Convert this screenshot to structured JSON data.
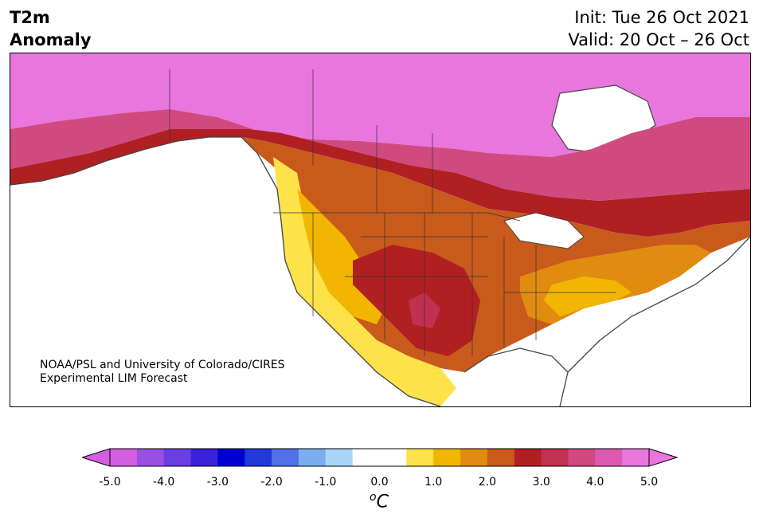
{
  "header": {
    "variable": "T2m",
    "type": "Anomaly",
    "init": "Init: Tue 26 Oct 2021",
    "valid": "Valid: 20 Oct – 26 Oct"
  },
  "credit": {
    "line1": "NOAA/PSL and University of Colorado/CIRES",
    "line2": "Experimental LIM Forecast"
  },
  "colorbar": {
    "ticks": [
      "-5.0",
      "-4.0",
      "-3.0",
      "-2.0",
      "-1.0",
      "0.0",
      "1.0",
      "2.0",
      "3.0",
      "4.0",
      "5.0"
    ],
    "unit_base": "C",
    "unit_sup": "o",
    "colors": [
      "#d45ee0",
      "#9a4fe0",
      "#6a3ee0",
      "#3a22d8",
      "#0000d0",
      "#2238d8",
      "#4e72e6",
      "#7aaef0",
      "#a8d8f8",
      "#ffffff",
      "#ffffff",
      "#fde24a",
      "#f2b600",
      "#e08c10",
      "#c85a1c",
      "#b02022",
      "#c03050",
      "#d04a80",
      "#dc5ab0",
      "#e876dc"
    ]
  }
}
